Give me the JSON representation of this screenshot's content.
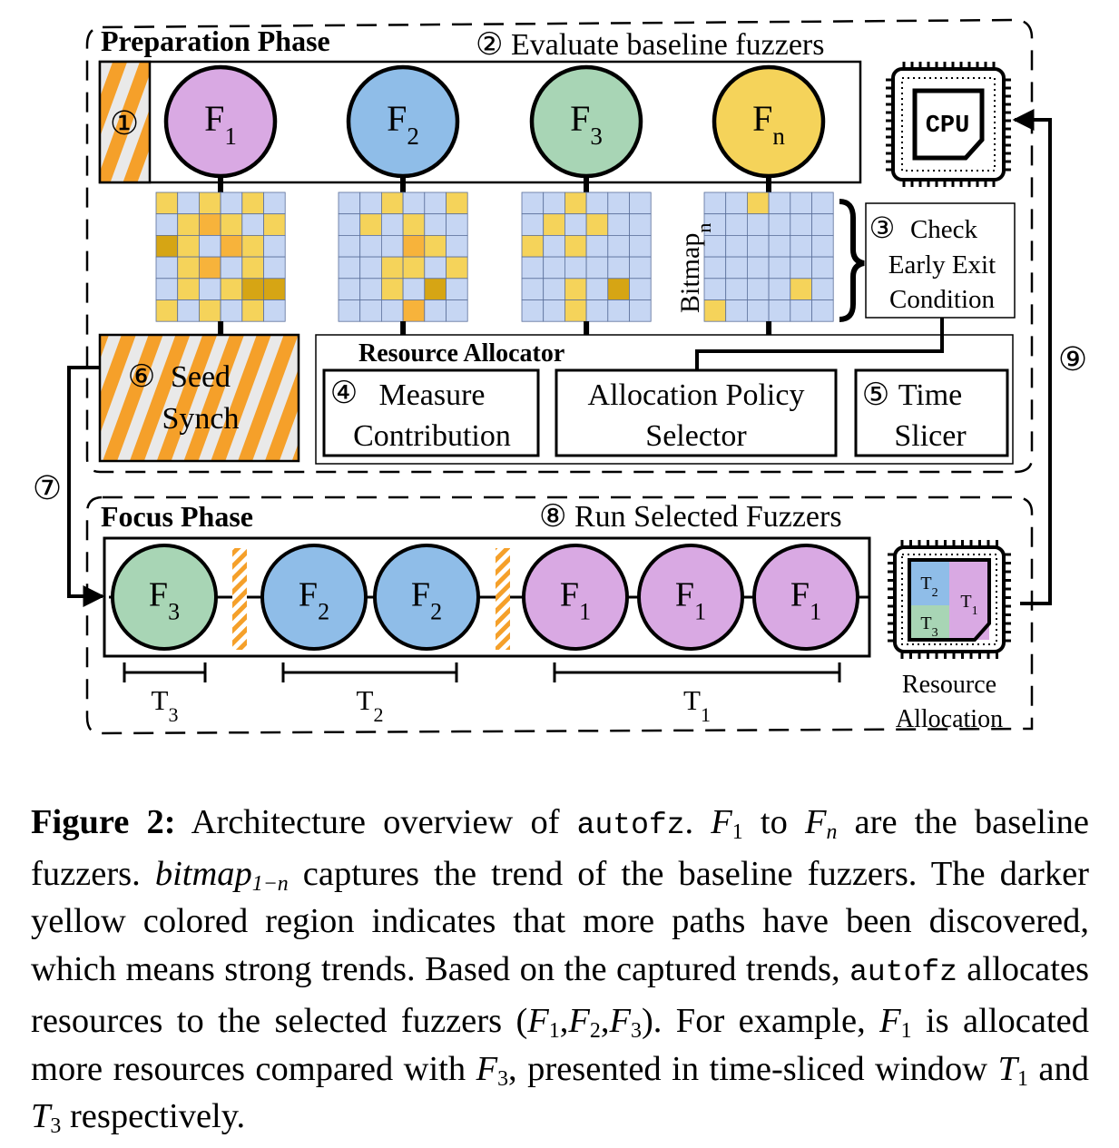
{
  "preparation": {
    "title": "Preparation Phase",
    "step1": "①",
    "step2": "② Evaluate baseline fuzzers",
    "fuzzers": [
      {
        "name": "F",
        "sub": "1",
        "color": "#d9a9e3"
      },
      {
        "name": "F",
        "sub": "2",
        "color": "#8fbde8"
      },
      {
        "name": "F",
        "sub": "3",
        "color": "#a8d5b5"
      },
      {
        "name": "F",
        "sub": "n",
        "color": "#f5d35a"
      }
    ],
    "bitmap_label": "Bitmap",
    "bitmap_label_sub": "n",
    "check": {
      "num": "③",
      "line1": "Check",
      "line2": "Early Exit",
      "line3": "Condition"
    },
    "seed_synch": {
      "num": "⑥",
      "line1": "Seed",
      "line2": "Synch"
    },
    "resource_allocator": {
      "title": "Resource Allocator",
      "measure": {
        "num": "④",
        "line1": "Measure",
        "line2": "Contribution"
      },
      "policy": {
        "line1": "Allocation Policy",
        "line2": "Selector"
      },
      "slicer": {
        "num": "⑤",
        "line1": "Time",
        "line2": "Slicer"
      }
    },
    "cpu_label": "CPU"
  },
  "focus": {
    "title": "Focus Phase",
    "step8": "⑧ Run Selected Fuzzers",
    "fuzzers": [
      {
        "name": "F",
        "sub": "3",
        "color": "#a8d5b5"
      },
      {
        "name": "F",
        "sub": "2",
        "color": "#8fbde8"
      },
      {
        "name": "F",
        "sub": "2",
        "color": "#8fbde8"
      },
      {
        "name": "F",
        "sub": "1",
        "color": "#d9a9e3"
      },
      {
        "name": "F",
        "sub": "1",
        "color": "#d9a9e3"
      },
      {
        "name": "F",
        "sub": "1",
        "color": "#d9a9e3"
      }
    ],
    "windows": [
      {
        "name": "T",
        "sub": "3"
      },
      {
        "name": "T",
        "sub": "2"
      },
      {
        "name": "T",
        "sub": "1"
      }
    ],
    "chip_labels": [
      {
        "name": "T",
        "sub": "2",
        "color": "#8fbde8"
      },
      {
        "name": "T",
        "sub": "1",
        "color": "#d9a9e3"
      },
      {
        "name": "T",
        "sub": "3",
        "color": "#a8d5b5"
      }
    ],
    "resource_allocation": {
      "line1": "Resource",
      "line2": "Allocation"
    }
  },
  "arrows": {
    "step7": "⑦",
    "step9": "⑨"
  },
  "bitmap_colors": {
    "base": "#c6d6f3",
    "light": "#f5d35a",
    "medium": "#f7b33b",
    "dark": "#d6a514"
  },
  "stripe_colors": {
    "orange": "#f5a02a",
    "white": "#e9e9e9"
  },
  "caption": {
    "fig_label": "Figure 2:",
    "t1": " Architecture overview of ",
    "tool": "autofz",
    "t2": ". ",
    "F1": "F",
    "F1_sub": "1",
    "t3": " to ",
    "Fn": "F",
    "Fn_sub": "n",
    "t4": " are the baseline fuzzers. ",
    "bitmap": "bitmap",
    "bitmap_sub": "1−n",
    "t5": " captures the trend of the baseline fuzzers. The darker yellow colored region indicates that more paths have been discovered, which means strong trends. Based on the captured trends, ",
    "tool2": "autofz",
    "t6": " allocates resources to the selected fuzzers (",
    "sel1": "F",
    "sel1_sub": "1",
    "comma1": ",",
    "sel2": "F",
    "sel2_sub": "2",
    "comma2": ",",
    "sel3": "F",
    "sel3_sub": "3",
    "t7": "). For example, ",
    "ex1": "F",
    "ex1_sub": "1",
    "t8": " is allocated more resources compared with ",
    "ex3": "F",
    "ex3_sub": "3",
    "t9": ", presented in time-sliced window ",
    "w1": "T",
    "w1_sub": "1",
    "t10": " and ",
    "w3": "T",
    "w3_sub": "3",
    "t11": " respectively."
  }
}
